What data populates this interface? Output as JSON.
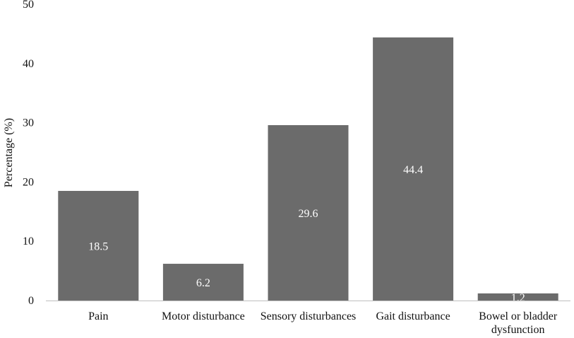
{
  "chart_data": {
    "type": "bar",
    "title": "",
    "xlabel": "",
    "ylabel": "Percentage (%)",
    "ylim": [
      0,
      50
    ],
    "yticks": [
      0,
      10,
      20,
      30,
      40,
      50
    ],
    "grid": false,
    "legend": "none",
    "bar_color": "#6b6b6b",
    "categories": [
      [
        "Pain"
      ],
      [
        "Motor disturbance"
      ],
      [
        "Sensory disturbances"
      ],
      [
        "Gait disturbance"
      ],
      [
        "Bowel or bladder",
        "dysfunction"
      ]
    ],
    "values": [
      18.5,
      6.2,
      29.6,
      44.4,
      1.2
    ],
    "data_labels": [
      "18.5",
      "6.2",
      "29.6",
      "44.4",
      "1.2"
    ]
  }
}
